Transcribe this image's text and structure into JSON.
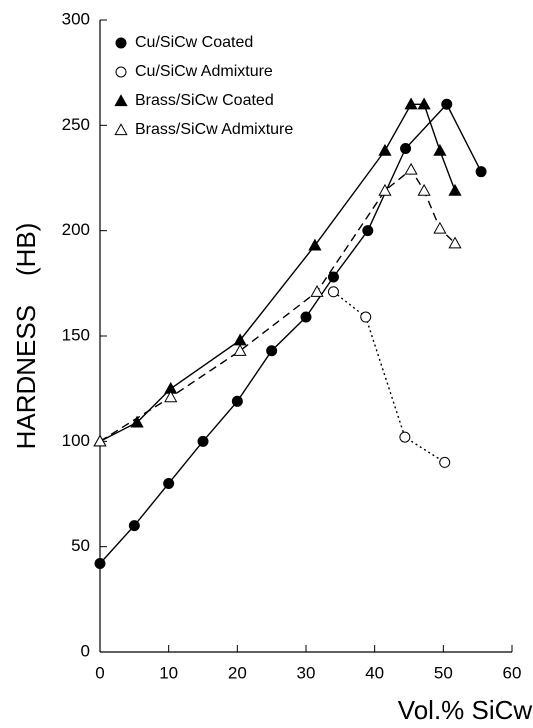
{
  "chart_data": {
    "type": "line",
    "xlabel": "Vol.%  SiCw",
    "ylabel": "HARDNESS    (HB)",
    "xlim": [
      0,
      60
    ],
    "ylim": [
      0,
      300
    ],
    "xticks": [
      0,
      10,
      20,
      30,
      40,
      50,
      60
    ],
    "yticks": [
      0,
      50,
      100,
      150,
      200,
      250,
      300
    ],
    "legend": "upper left",
    "series": [
      {
        "name": "Cu/SiCw Coated",
        "color": "#000000",
        "marker": "circle",
        "filled": true,
        "line_style": "solid",
        "x": [
          0,
          5,
          10,
          15,
          20,
          25,
          30,
          34,
          39,
          44.5,
          50.5,
          55.5
        ],
        "values": [
          42,
          60,
          80,
          100,
          119,
          143,
          159,
          178,
          200,
          239,
          260,
          228
        ]
      },
      {
        "name": "Cu/SiCw Admixture",
        "color": "#000000",
        "marker": "circle",
        "filled": false,
        "line_style": "dotted",
        "x": [
          34,
          38.7,
          44.4,
          50.2
        ],
        "values": [
          171,
          159,
          102,
          90
        ]
      },
      {
        "name": "Brass/SiCw Coated",
        "color": "#000000",
        "marker": "triangle",
        "filled": true,
        "line_style": "solid",
        "x": [
          0,
          5.4,
          10.3,
          20.4,
          31.3,
          41.5,
          45.3,
          47.2,
          49.5,
          51.7
        ],
        "values": [
          100,
          109,
          125,
          148,
          193,
          238,
          260,
          260,
          238,
          219
        ]
      },
      {
        "name": "Brass/SiCw Admixture",
        "color": "#000000",
        "marker": "triangle",
        "filled": false,
        "line_style": "dashed",
        "x": [
          0,
          10.3,
          20.4,
          31.6,
          41.5,
          45.3,
          47.2,
          49.5,
          51.7
        ],
        "values": [
          100,
          121,
          143,
          171,
          219,
          229,
          219,
          201,
          194
        ]
      }
    ]
  }
}
